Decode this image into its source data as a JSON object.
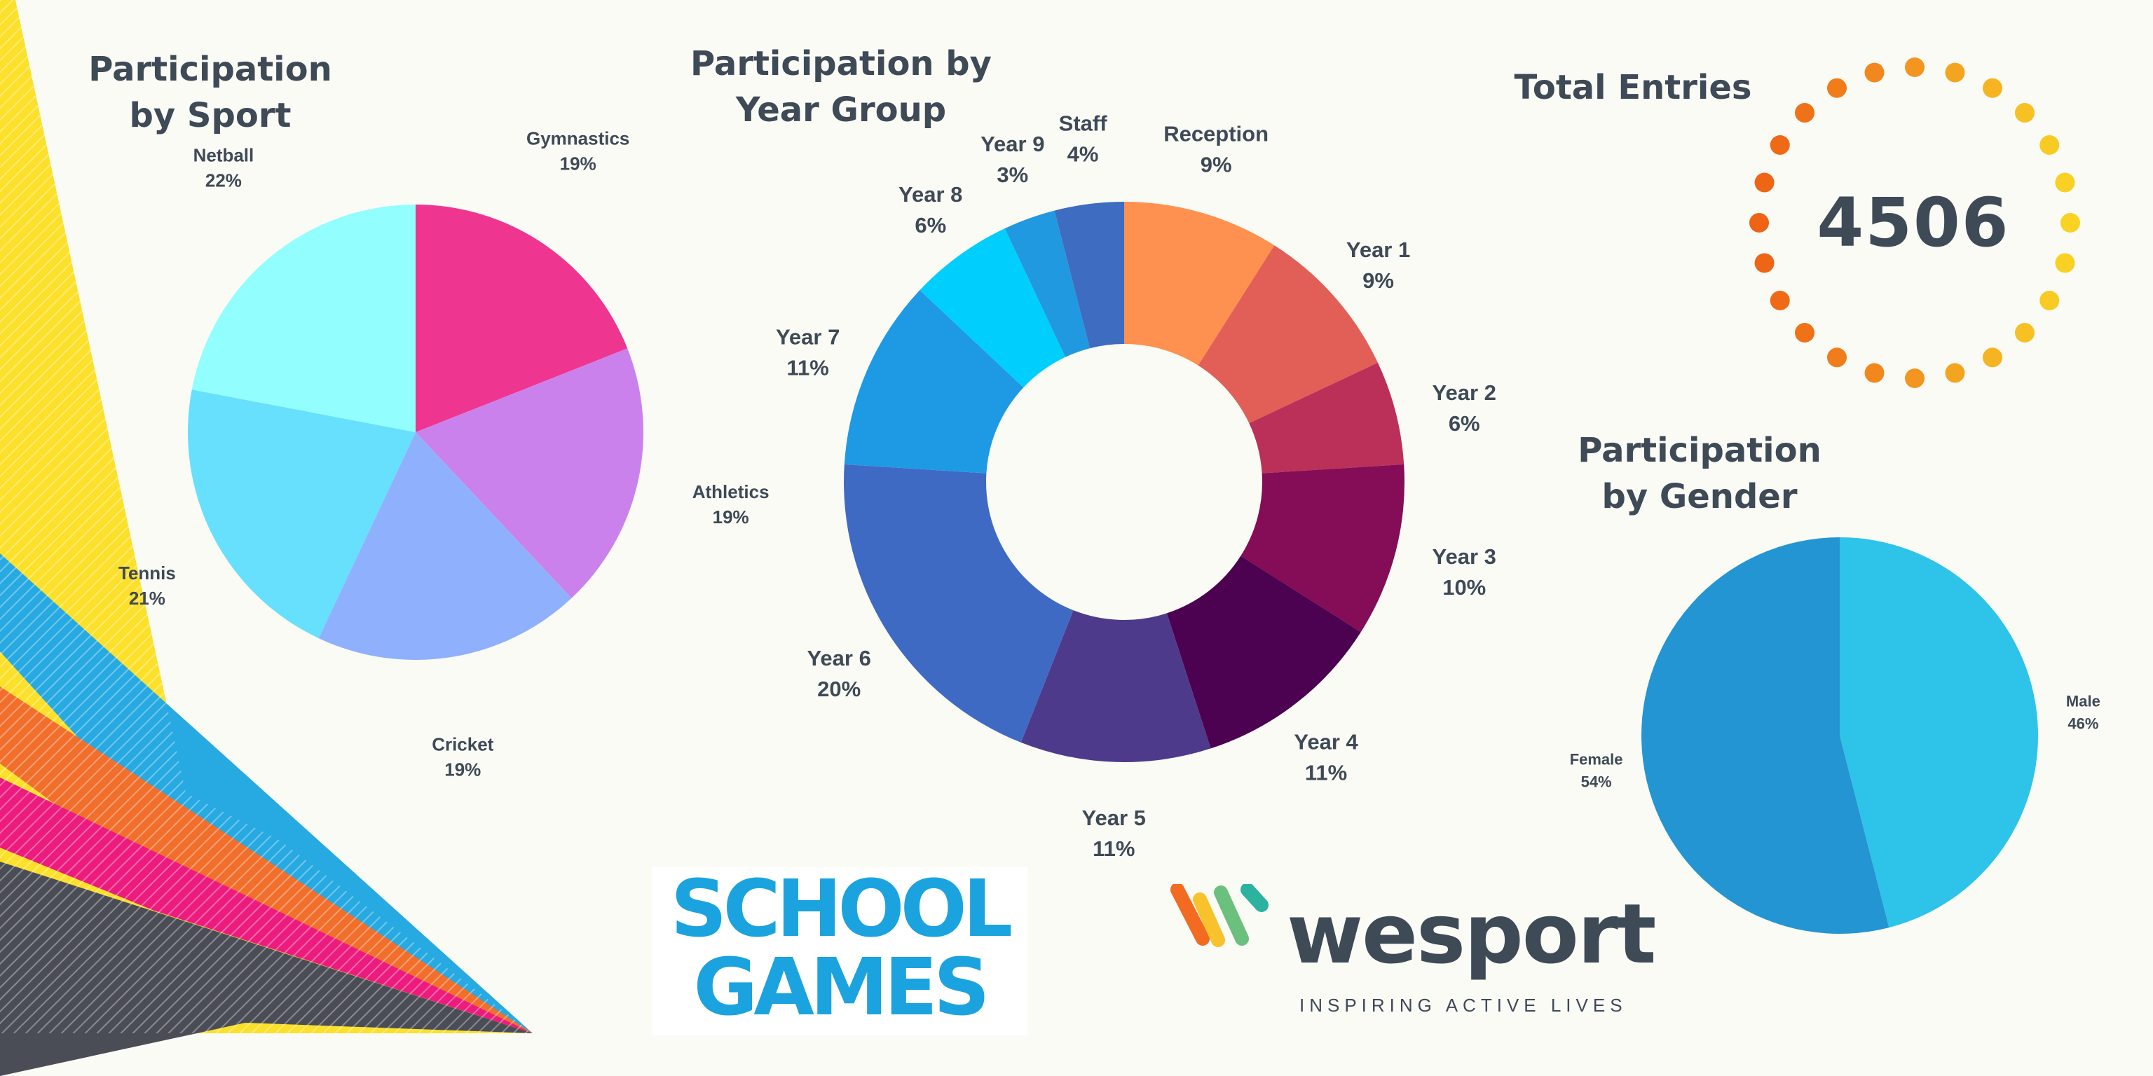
{
  "sport": {
    "title": "Participation\nby Sport"
  },
  "year_group": {
    "title": "Participation by\nYear Group"
  },
  "total": {
    "title": "Total Entries",
    "value": "4506"
  },
  "gender": {
    "title": "Participation\nby Gender"
  },
  "logos": {
    "school_games_line1": "SCHOOL",
    "school_games_line2": "GAMES",
    "wesport_name": "wesport",
    "wesport_tagline": "INSPIRING ACTIVE LIVES"
  },
  "chart_data": [
    {
      "type": "pie",
      "title": "Participation by Sport",
      "categories": [
        "Gymnastics",
        "Athletics",
        "Cricket",
        "Tennis",
        "Netball"
      ],
      "values": [
        19,
        19,
        19,
        21,
        22
      ],
      "labels": [
        "19%",
        "19%",
        "19%",
        "21%",
        "22%"
      ],
      "colors": [
        "#ee358f",
        "#cb81ec",
        "#8fb1fd",
        "#67e0fd",
        "#93fefe"
      ]
    },
    {
      "type": "pie",
      "subtype": "donut",
      "title": "Participation by Year Group",
      "categories": [
        "Reception",
        "Year 1",
        "Year 2",
        "Year 3",
        "Year 4",
        "Year 5",
        "Year 6",
        "Year 7",
        "Year 8",
        "Year 9",
        "Staff"
      ],
      "values": [
        9,
        9,
        6,
        10,
        11,
        11,
        20,
        11,
        6,
        3,
        4
      ],
      "labels": [
        "9%",
        "9%",
        "6%",
        "10%",
        "11%",
        "11%",
        "20%",
        "11%",
        "6%",
        "3%",
        "4%"
      ],
      "colors": [
        "#fe914f",
        "#e25f57",
        "#bb3058",
        "#850c57",
        "#4c0151",
        "#4e3a8b",
        "#3f6ac4",
        "#1e9ae4",
        "#00cffd",
        "#2199e0",
        "#3e6cc1"
      ]
    },
    {
      "type": "pie",
      "title": "Participation by Gender",
      "categories": [
        "Male",
        "Female"
      ],
      "values": [
        46,
        54
      ],
      "labels": [
        "46%",
        "54%"
      ],
      "colors": [
        "#2ec3e9",
        "#2495d3"
      ]
    }
  ],
  "ring_colors": [
    "#ee6316",
    "#f3951f",
    "#f8d324"
  ]
}
